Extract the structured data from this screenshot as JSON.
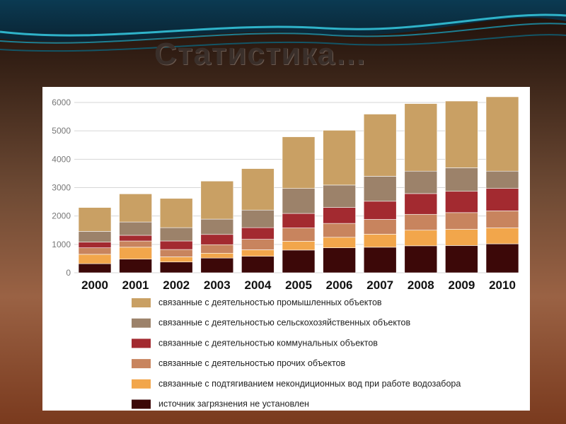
{
  "slide_title": "Статистика…",
  "colors": {
    "industrial": "#c9a064",
    "agricultural": "#9c826a",
    "communal": "#a32a30",
    "other": "#c8845e",
    "water_intake": "#f2a64b",
    "unknown": "#3c0808"
  },
  "chart_data": {
    "type": "bar",
    "stacked": true,
    "categories": [
      "2000",
      "2001",
      "2002",
      "2003",
      "2004",
      "2005",
      "2006",
      "2007",
      "2008",
      "2009",
      "2010"
    ],
    "series": [
      {
        "key": "unknown",
        "name": "источник загрязнения не установлен",
        "values": [
          320,
          480,
          380,
          520,
          580,
          800,
          880,
          900,
          950,
          960,
          1020
        ]
      },
      {
        "key": "water_intake",
        "name": "связанные с подтягиванием некондиционных вод при работе водозабора",
        "values": [
          330,
          420,
          180,
          170,
          230,
          310,
          370,
          460,
          550,
          570,
          560
        ]
      },
      {
        "key": "other",
        "name": "связанные с деятельностью прочих объектов",
        "values": [
          230,
          220,
          260,
          300,
          370,
          470,
          490,
          520,
          560,
          590,
          600
        ]
      },
      {
        "key": "communal",
        "name": "связанные с деятельностью коммунальных объектов",
        "values": [
          200,
          200,
          300,
          360,
          410,
          510,
          560,
          640,
          730,
          750,
          790
        ]
      },
      {
        "key": "agricultural",
        "name": "связанные с деятельностью сельскохозяйственных объектов",
        "values": [
          380,
          470,
          470,
          540,
          620,
          880,
          790,
          880,
          790,
          830,
          610
        ]
      },
      {
        "key": "industrial",
        "name": "связанные с деятельностью промышленных объектов",
        "values": [
          840,
          990,
          1030,
          1340,
          1460,
          1820,
          1930,
          2190,
          2380,
          2350,
          2620
        ]
      }
    ],
    "legend_order": [
      "industrial",
      "agricultural",
      "communal",
      "other",
      "water_intake",
      "unknown"
    ],
    "yticks": [
      0,
      1000,
      2000,
      3000,
      4000,
      5000,
      6000
    ],
    "ylim": [
      0,
      6000
    ],
    "title": "",
    "xlabel": "",
    "ylabel": "",
    "grid": true
  }
}
